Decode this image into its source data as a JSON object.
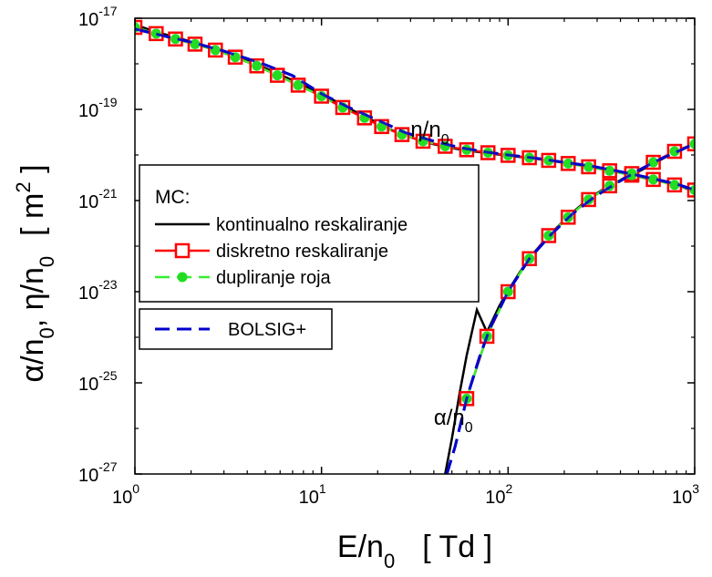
{
  "chart_data": {
    "type": "line",
    "x_scale": "log",
    "y_scale": "log",
    "xlim": [
      1,
      1000
    ],
    "ylim": [
      1e-27,
      1e-17
    ],
    "xlabel": {
      "base": "E/n",
      "sub": "0",
      "unit": "[ Td ]"
    },
    "ylabel": {
      "parts": [
        "α/n",
        "0",
        ", η/n",
        "0"
      ],
      "unit": "[ m",
      "unit_sup": "2",
      "unit_end": " ]"
    },
    "x_ticks": [
      {
        "value": 1,
        "base": "10",
        "exp": "0"
      },
      {
        "value": 10,
        "base": "10",
        "exp": "1"
      },
      {
        "value": 100,
        "base": "10",
        "exp": "2"
      },
      {
        "value": 1000,
        "base": "10",
        "exp": "3"
      }
    ],
    "y_ticks": [
      {
        "value": 1e-27,
        "base": "10",
        "exp": "-27"
      },
      {
        "value": 1e-25,
        "base": "10",
        "exp": "-25"
      },
      {
        "value": 1e-23,
        "base": "10",
        "exp": "-23"
      },
      {
        "value": 1e-21,
        "base": "10",
        "exp": "-21"
      },
      {
        "value": 1e-19,
        "base": "10",
        "exp": "-19"
      },
      {
        "value": 1e-17,
        "base": "10",
        "exp": "-17"
      }
    ],
    "annotations": [
      {
        "base": "η/n",
        "sub": "0",
        "x": 30,
        "y": 2.5e-20
      },
      {
        "base": "α/n",
        "sub": "0",
        "x": 40,
        "y": 1.2e-26
      }
    ],
    "legend": {
      "placement": "middle-left",
      "header": "MC:",
      "entries": [
        {
          "label": "kontinualno reskaliranje",
          "series": "kontinualno"
        },
        {
          "label": "diskretno reskaliranje",
          "series": "diskretno"
        },
        {
          "label": "dupliranje roja",
          "series": "dupliranje"
        }
      ],
      "second_box": [
        {
          "label": "BOLSIG+",
          "series": "bolsig"
        }
      ]
    },
    "styles": {
      "kontinualno": {
        "color": "#000000",
        "dash": "none",
        "marker": "none"
      },
      "diskretno": {
        "color": "#ff0000",
        "dash": "none",
        "marker": "open-square"
      },
      "dupliranje": {
        "color": "#33ee33",
        "dash": "dash",
        "marker": "filled-circle",
        "marker_color": "#22dd22"
      },
      "bolsig": {
        "color": "#0000cc",
        "dash": "dash",
        "marker": "none"
      }
    },
    "series": [
      {
        "key": "kontinualno",
        "quantity": "eta",
        "x": [
          1,
          1.3,
          1.7,
          2.1,
          2.7,
          3.3,
          4.0,
          5.0,
          6.5,
          8.5,
          11,
          14,
          18,
          22,
          28,
          36,
          46,
          60,
          77,
          100,
          130,
          165,
          210,
          270,
          340,
          440,
          560,
          700,
          850,
          1000
        ],
        "y": [
          7.2e-18,
          5e-18,
          3.7e-18,
          2.9e-18,
          2.1e-18,
          1.65e-18,
          1.2e-18,
          8e-19,
          5e-19,
          3e-19,
          1.8e-19,
          1.05e-19,
          6.3e-20,
          4e-20,
          2.7e-20,
          1.9e-20,
          1.5e-20,
          1.25e-20,
          1.1e-20,
          9.6e-21,
          8.6e-21,
          7.6e-21,
          6.6e-21,
          5.6e-21,
          4.6e-21,
          3.8e-21,
          3e-21,
          2.5e-21,
          2e-21,
          1.6e-21
        ]
      },
      {
        "key": "kontinualno",
        "quantity": "alpha",
        "x": [
          46,
          50,
          55,
          60,
          68,
          77,
          90,
          100,
          115,
          130,
          165,
          210,
          270,
          340,
          440,
          560,
          700,
          850,
          1000
        ],
        "y": [
          1e-27,
          6e-27,
          6e-26,
          4e-25,
          4e-24,
          1.3e-24,
          5e-24,
          1.05e-23,
          2.6e-23,
          5.5e-23,
          1.7e-22,
          4.5e-22,
          1.1e-21,
          2e-21,
          3.3e-21,
          5.5e-21,
          9e-21,
          1.3e-20,
          1.8e-20
        ]
      },
      {
        "key": "diskretno",
        "quantity": "eta",
        "x": [
          1,
          1.3,
          1.65,
          2.1,
          2.7,
          3.45,
          4.5,
          5.8,
          7.5,
          10,
          13,
          17,
          21,
          27,
          35,
          46,
          60,
          78,
          100,
          130,
          165,
          210,
          270,
          350,
          460,
          600,
          780,
          1000
        ],
        "y": [
          6.3e-18,
          4.6e-18,
          3.5e-18,
          2.7e-18,
          2e-18,
          1.4e-18,
          9e-19,
          5.6e-19,
          3.4e-19,
          1.95e-19,
          1.1e-19,
          6.5e-20,
          4.2e-20,
          2.8e-20,
          2e-20,
          1.55e-20,
          1.3e-20,
          1.12e-20,
          9.8e-21,
          8.7e-21,
          7.6e-21,
          6.5e-21,
          5.5e-21,
          4.5e-21,
          3.6e-21,
          2.9e-21,
          2.2e-21,
          1.7e-21
        ]
      },
      {
        "key": "diskretno",
        "quantity": "alpha",
        "x": [
          60,
          77,
          100,
          130,
          165,
          210,
          270,
          350,
          460,
          600,
          780,
          1000
        ],
        "y": [
          4.5e-26,
          1.05e-24,
          1e-23,
          5.3e-23,
          1.7e-22,
          4.3e-22,
          1.05e-21,
          2.1e-21,
          3.9e-21,
          6.9e-21,
          1.2e-20,
          1.75e-20
        ]
      },
      {
        "key": "dupliranje",
        "quantity": "eta",
        "x": [
          1,
          1.3,
          1.65,
          2.1,
          2.7,
          3.45,
          4.5,
          5.8,
          7.5,
          10,
          13,
          17,
          21,
          27,
          35,
          46,
          60,
          78,
          100,
          130,
          165,
          210,
          270,
          350,
          460,
          600,
          780,
          1000
        ],
        "y": [
          6.3e-18,
          4.6e-18,
          3.5e-18,
          2.7e-18,
          2e-18,
          1.4e-18,
          9e-19,
          5.6e-19,
          3.4e-19,
          1.95e-19,
          1.1e-19,
          6.5e-20,
          4.2e-20,
          2.8e-20,
          2e-20,
          1.55e-20,
          1.3e-20,
          1.12e-20,
          9.8e-21,
          8.7e-21,
          7.6e-21,
          6.5e-21,
          5.5e-21,
          4.5e-21,
          3.6e-21,
          2.9e-21,
          2.2e-21,
          1.7e-21
        ]
      },
      {
        "key": "dupliranje",
        "quantity": "alpha",
        "x": [
          60,
          77,
          100,
          130,
          165,
          210,
          270,
          350,
          460,
          600,
          780,
          1000
        ],
        "y": [
          4.5e-26,
          1.05e-24,
          1e-23,
          5.3e-23,
          1.7e-22,
          4.3e-22,
          1.05e-21,
          2.1e-21,
          3.9e-21,
          6.9e-21,
          1.2e-20,
          1.75e-20
        ]
      },
      {
        "key": "bolsig",
        "quantity": "eta",
        "x": [
          1,
          1.5,
          2,
          3,
          4,
          5,
          7,
          10,
          14,
          20,
          28,
          40,
          55,
          75,
          100,
          140,
          200,
          280,
          400,
          560,
          800,
          1000
        ],
        "y": [
          5.8e-18,
          3.9e-18,
          3e-18,
          1.9e-18,
          1.3e-18,
          9.5e-19,
          5.5e-19,
          2.2e-19,
          1.1e-19,
          5.8e-20,
          3.1e-20,
          2e-20,
          1.45e-20,
          1.17e-20,
          1e-20,
          8.5e-21,
          6.9e-21,
          5.7e-21,
          4.3e-21,
          3.2e-21,
          2.3e-21,
          1.7e-21
        ]
      },
      {
        "key": "bolsig",
        "quantity": "alpha",
        "x": [
          47,
          52,
          60,
          70,
          80,
          100,
          130,
          170,
          220,
          290,
          380,
          500,
          650,
          850,
          1000
        ],
        "y": [
          1e-27,
          4e-27,
          4.5e-26,
          3.5e-25,
          1.6e-24,
          1e-23,
          5.3e-23,
          1.8e-22,
          5e-22,
          1.2e-21,
          2.4e-21,
          4.6e-21,
          8e-21,
          1.3e-20,
          1.8e-20
        ]
      }
    ]
  }
}
